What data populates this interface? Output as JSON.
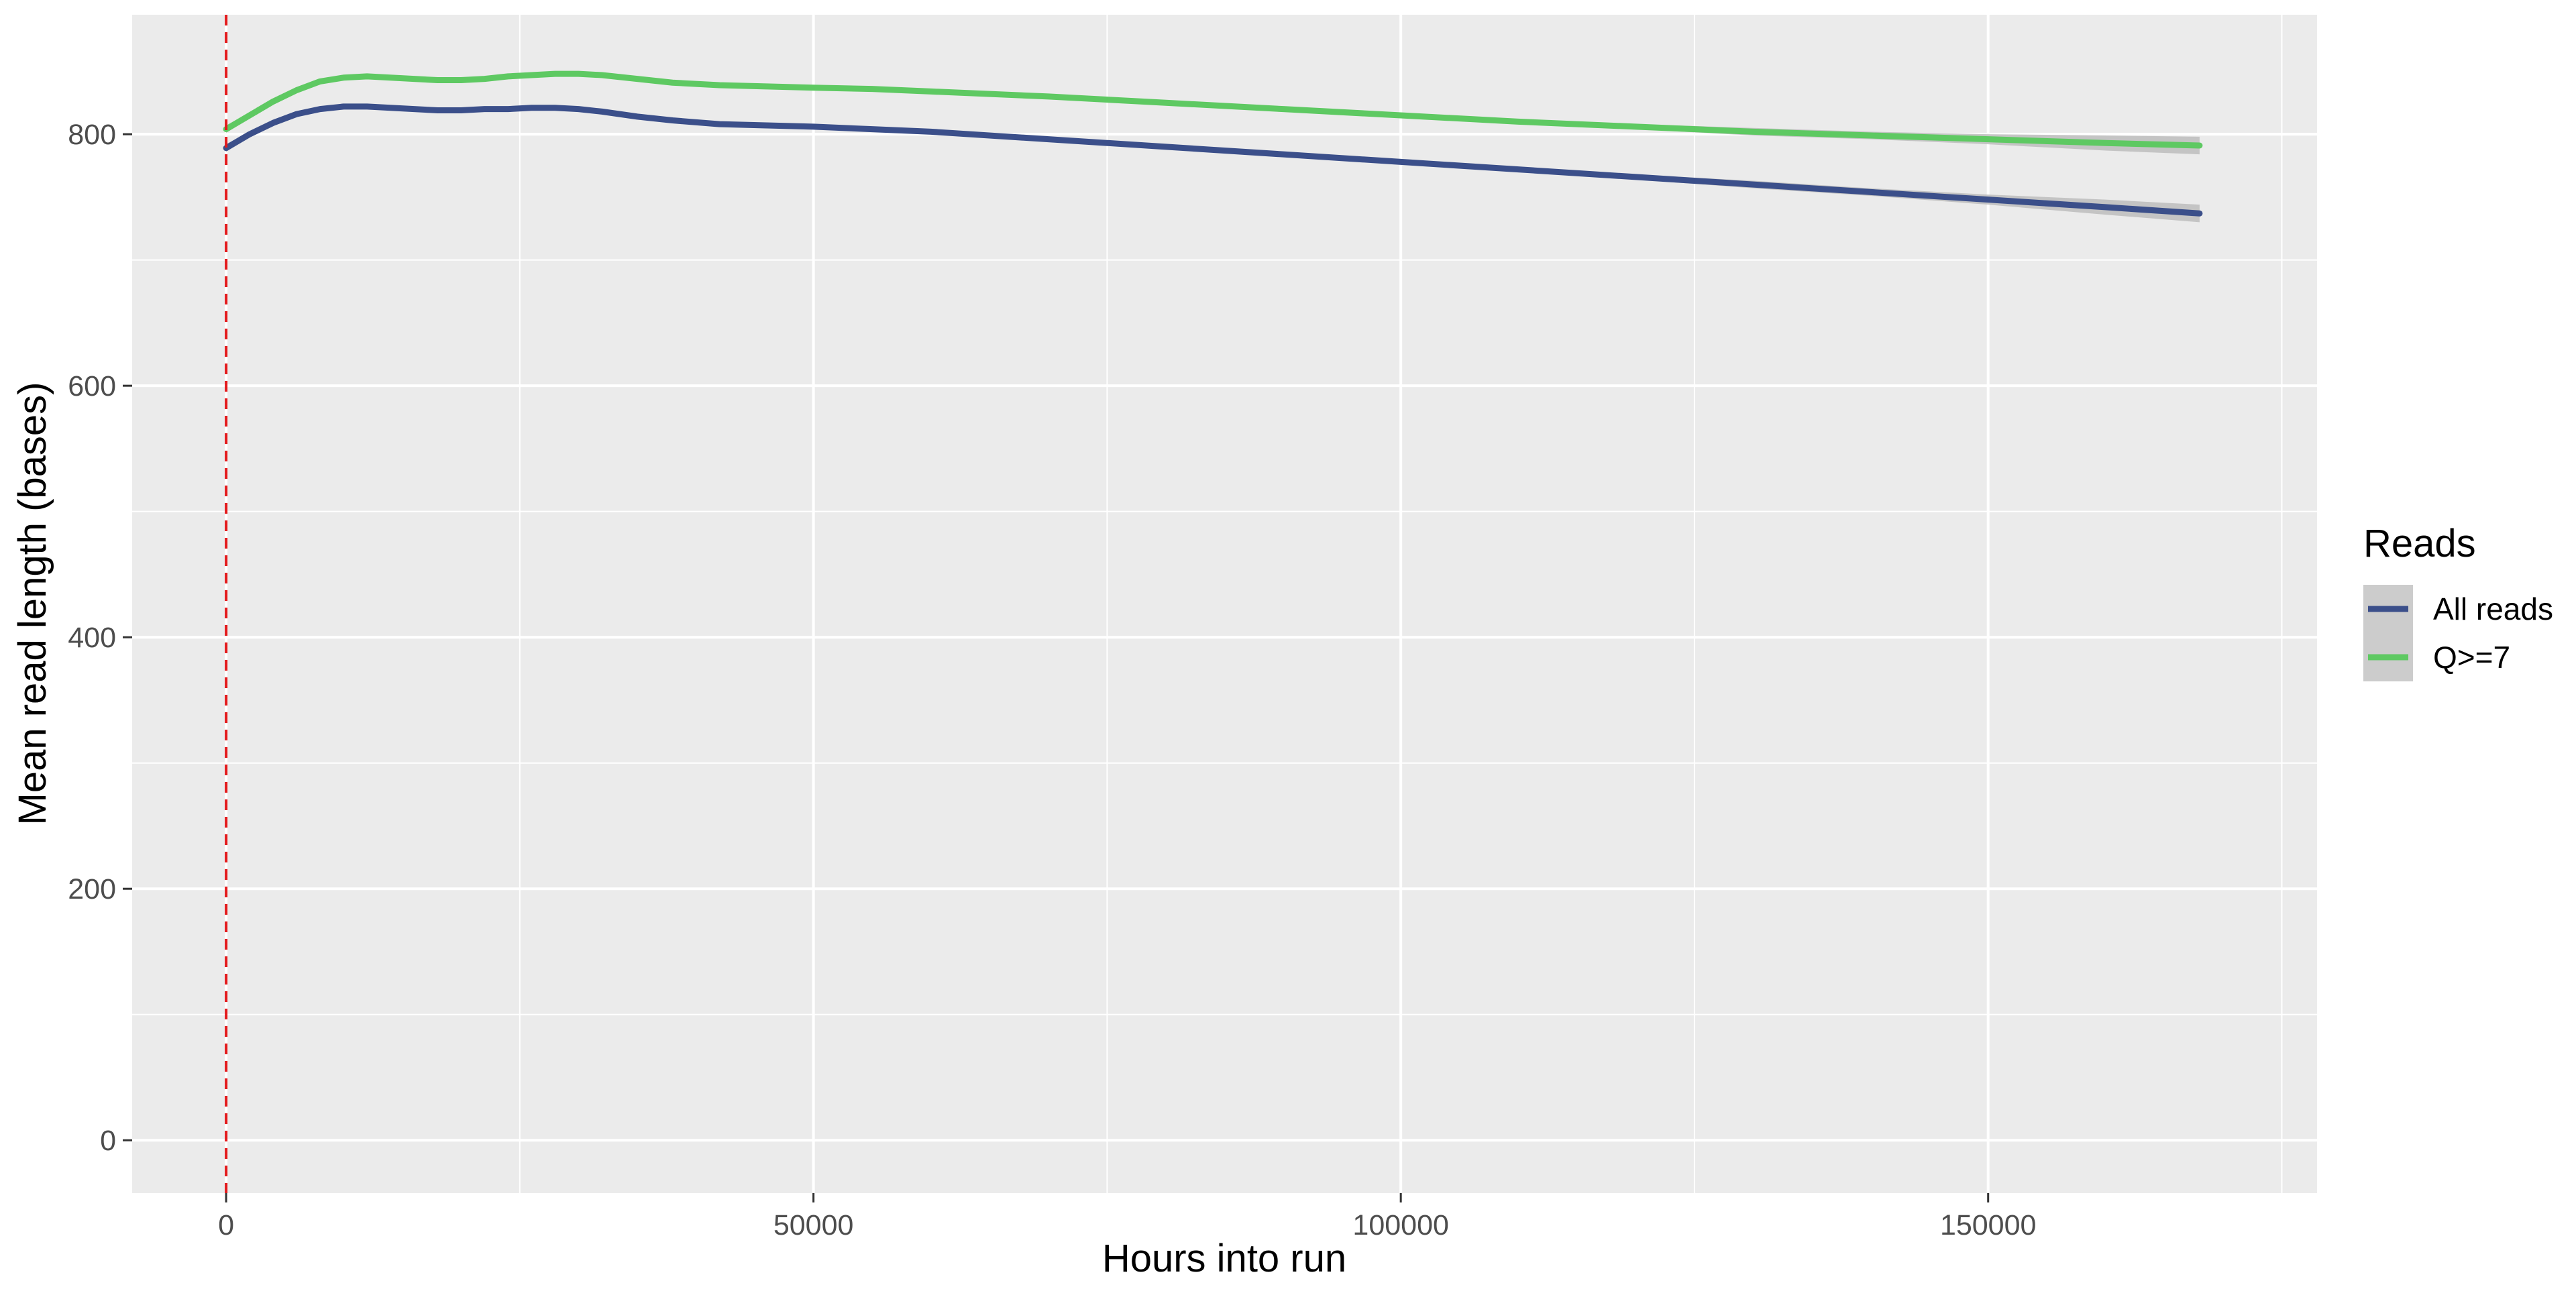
{
  "chart_data": {
    "type": "line",
    "xlabel": "Hours into run",
    "ylabel": "Mean read length (bases)",
    "xlim": [
      -8000,
      178000
    ],
    "ylim": [
      -42,
      895
    ],
    "x_ticks": [
      0,
      50000,
      100000,
      150000
    ],
    "x_tick_labels": [
      "0",
      "50000",
      "100000",
      "150000"
    ],
    "x_minor_ticks": [
      25000,
      75000,
      125000,
      175000
    ],
    "y_ticks": [
      0,
      200,
      400,
      600,
      800
    ],
    "y_tick_labels": [
      "0",
      "200",
      "400",
      "600",
      "800"
    ],
    "y_minor_ticks": [
      100,
      300,
      500,
      700
    ],
    "grid": true,
    "vline": {
      "x": 0,
      "color": "#e41a1c",
      "style": "dashed"
    },
    "legend": {
      "title": "Reads",
      "position": "right"
    },
    "series": [
      {
        "name": "All reads",
        "color": "#3b4f8a",
        "x": [
          0,
          2000,
          4000,
          6000,
          8000,
          10000,
          12000,
          14000,
          16000,
          18000,
          20000,
          22000,
          24000,
          26000,
          28000,
          30000,
          32000,
          35000,
          38000,
          42000,
          46000,
          50000,
          55000,
          60000,
          70000,
          80000,
          90000,
          100000,
          110000,
          120000,
          130000,
          140000,
          150000,
          160000,
          168000
        ],
        "y": [
          789,
          800,
          809,
          816,
          820,
          822,
          822,
          821,
          820,
          819,
          819,
          820,
          820,
          821,
          821,
          820,
          818,
          814,
          811,
          808,
          807,
          806,
          804,
          802,
          796,
          790,
          784,
          778,
          772,
          766,
          760,
          754,
          748,
          742,
          737
        ],
        "ci_half": [
          3,
          2,
          2,
          2,
          2,
          2,
          2,
          2,
          2,
          2,
          2,
          2,
          2,
          2,
          2,
          2,
          2,
          2,
          2,
          2,
          2,
          2,
          2,
          2,
          2,
          2,
          2,
          2,
          2,
          2,
          3,
          3,
          4,
          6,
          7
        ]
      },
      {
        "name": "Q>=7",
        "color": "#5ec962",
        "x": [
          0,
          2000,
          4000,
          6000,
          8000,
          10000,
          12000,
          14000,
          16000,
          18000,
          20000,
          22000,
          24000,
          26000,
          28000,
          30000,
          32000,
          35000,
          38000,
          42000,
          46000,
          50000,
          55000,
          60000,
          70000,
          80000,
          90000,
          100000,
          110000,
          120000,
          130000,
          140000,
          150000,
          160000,
          168000
        ],
        "y": [
          804,
          815,
          826,
          835,
          842,
          845,
          846,
          845,
          844,
          843,
          843,
          844,
          846,
          847,
          848,
          848,
          847,
          844,
          841,
          839,
          838,
          837,
          836,
          834,
          830,
          825,
          820,
          815,
          810,
          806,
          802,
          799,
          796,
          793,
          791
        ],
        "ci_half": [
          3,
          2,
          2,
          2,
          2,
          2,
          2,
          2,
          2,
          2,
          2,
          2,
          2,
          2,
          2,
          2,
          2,
          2,
          2,
          2,
          2,
          2,
          2,
          2,
          2,
          2,
          2,
          2,
          2,
          2,
          3,
          3,
          4,
          6,
          7
        ]
      }
    ]
  },
  "style": {
    "panel_bg": "#ebebeb",
    "grid_major": "#ffffff",
    "ci_fill": "#bdbdbd",
    "legend_key_bg": "#cccccc"
  }
}
